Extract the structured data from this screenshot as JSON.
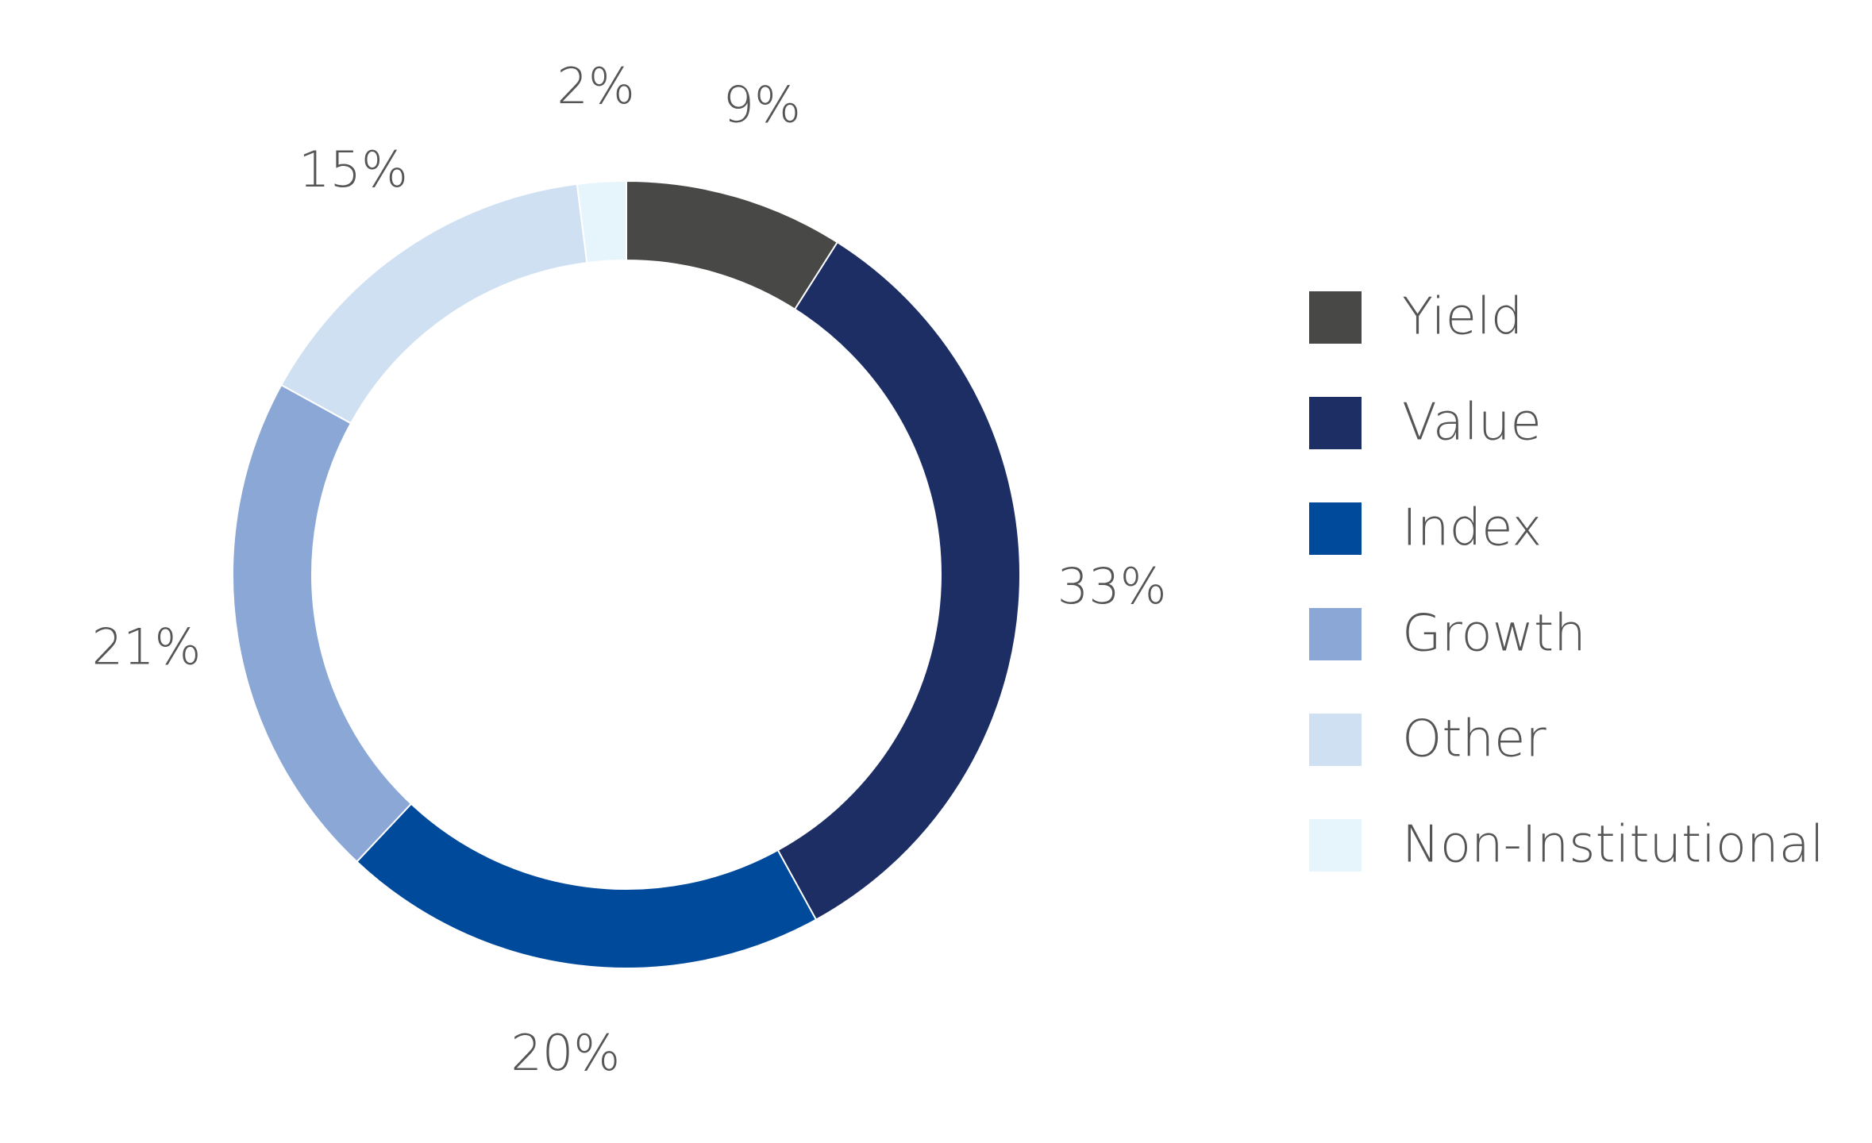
{
  "chart_data": {
    "type": "donut",
    "categories": [
      "Yield",
      "Value",
      "Index",
      "Growth",
      "Other",
      "Non-Institutional"
    ],
    "values": [
      9,
      33,
      20,
      21,
      15,
      2
    ],
    "value_labels": [
      "9%",
      "33%",
      "20%",
      "21%",
      "15%",
      "2%"
    ],
    "colors": [
      "#484846",
      "#1c2e63",
      "#004a9c",
      "#8aa7d6",
      "#cfe0f3",
      "#e6f5fc"
    ],
    "legend": "right"
  }
}
